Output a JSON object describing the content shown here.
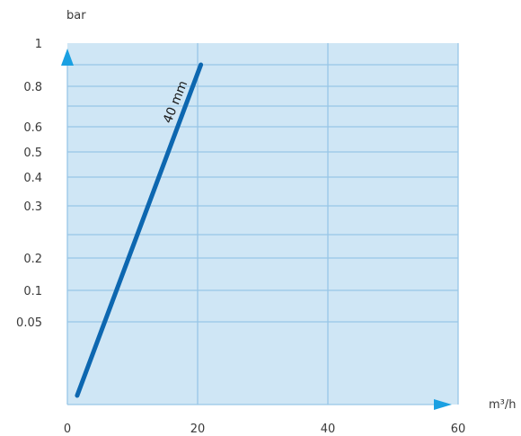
{
  "chart_data": {
    "type": "line",
    "ylabel": "bar",
    "xlabel": "m³/h",
    "xlim": [
      0,
      60
    ],
    "x_ticks": [
      {
        "value": 0,
        "label": "0"
      },
      {
        "value": 20,
        "label": "20"
      },
      {
        "value": 40,
        "label": "40"
      },
      {
        "value": 60,
        "label": "60"
      }
    ],
    "y_ticks": [
      {
        "value": 1,
        "label": "1"
      },
      {
        "value": 0.8,
        "label": "0.8"
      },
      {
        "value": 0.6,
        "label": "0.6"
      },
      {
        "value": 0.5,
        "label": "0.5"
      },
      {
        "value": 0.4,
        "label": "0.4"
      },
      {
        "value": 0.3,
        "label": "0.3"
      },
      {
        "value": 0.2,
        "label": "0.2"
      },
      {
        "value": 0.1,
        "label": "0.1"
      },
      {
        "value": 0.05,
        "label": "0.05"
      }
    ],
    "grid": true,
    "series": [
      {
        "name": "40 mm",
        "points": [
          {
            "x": 1.5,
            "y": 0.02
          },
          {
            "x": 20.5,
            "y": 0.88
          }
        ]
      }
    ],
    "colors": {
      "plot_background": "#cfe6f5",
      "grid": "#98c6e6",
      "line": "#0d67b0",
      "axis_arrow": "#1aa0e2"
    }
  }
}
